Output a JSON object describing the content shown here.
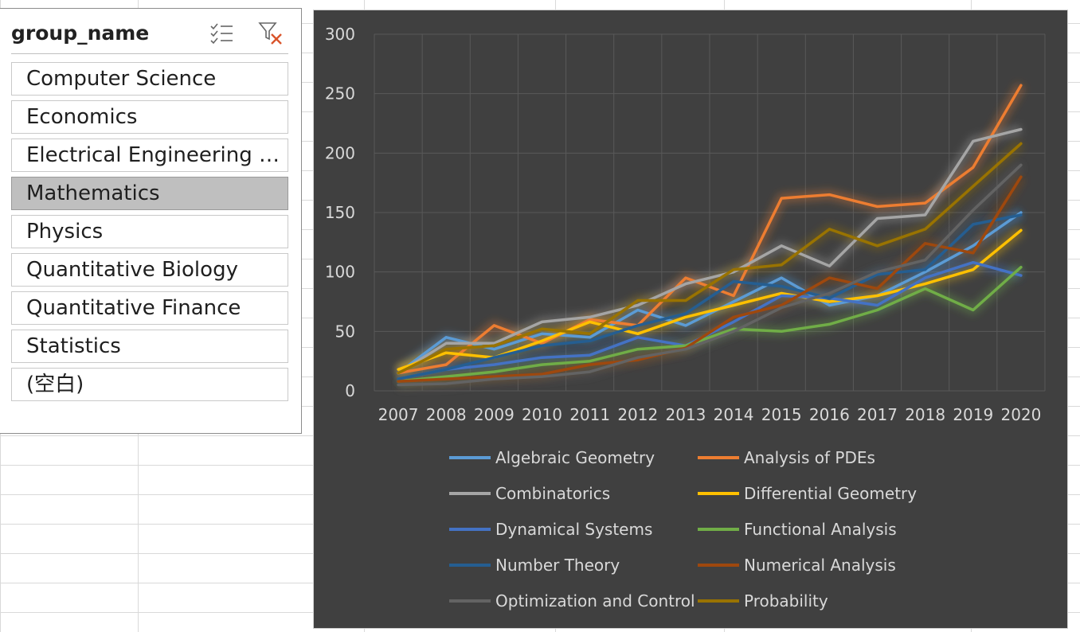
{
  "slicer": {
    "title": "group_name",
    "multiselect_icon": "multi-select-icon",
    "clear_filter_icon": "clear-filter-icon",
    "items": [
      {
        "label": "Computer Science",
        "selected": false
      },
      {
        "label": "Economics",
        "selected": false
      },
      {
        "label": "Electrical Engineering a...",
        "selected": false
      },
      {
        "label": "Mathematics",
        "selected": true
      },
      {
        "label": "Physics",
        "selected": false
      },
      {
        "label": "Quantitative Biology",
        "selected": false
      },
      {
        "label": "Quantitative Finance",
        "selected": false
      },
      {
        "label": "Statistics",
        "selected": false
      },
      {
        "label": "(空白)",
        "selected": false
      }
    ]
  },
  "chart_data": {
    "type": "line",
    "title": "",
    "xlabel": "",
    "ylabel": "",
    "x": [
      "2007",
      "2008",
      "2009",
      "2010",
      "2011",
      "2012",
      "2013",
      "2014",
      "2015",
      "2016",
      "2017",
      "2018",
      "2019",
      "2020"
    ],
    "ylim": [
      0,
      300
    ],
    "yticks": [
      0,
      50,
      100,
      150,
      200,
      250,
      300
    ],
    "grid": true,
    "legend_position": "bottom",
    "background": "#404040",
    "series": [
      {
        "name": "Algebraic Geometry",
        "color": "#5b9bd5",
        "values": [
          15,
          45,
          35,
          48,
          45,
          68,
          55,
          75,
          95,
          72,
          80,
          100,
          122,
          150
        ]
      },
      {
        "name": "Analysis of PDEs",
        "color": "#ed7d31",
        "values": [
          15,
          22,
          55,
          40,
          60,
          55,
          95,
          80,
          162,
          165,
          155,
          158,
          188,
          257
        ]
      },
      {
        "name": "Combinatorics",
        "color": "#a5a5a5",
        "values": [
          15,
          40,
          40,
          58,
          62,
          72,
          90,
          100,
          122,
          105,
          145,
          148,
          210,
          220
        ]
      },
      {
        "name": "Differential Geometry",
        "color": "#ffc000",
        "values": [
          18,
          32,
          28,
          42,
          58,
          48,
          62,
          72,
          82,
          75,
          80,
          90,
          102,
          135
        ]
      },
      {
        "name": "Dynamical Systems",
        "color": "#4472c4",
        "values": [
          10,
          18,
          22,
          28,
          30,
          45,
          38,
          58,
          80,
          78,
          72,
          95,
          108,
          97
        ]
      },
      {
        "name": "Functional Analysis",
        "color": "#70ad47",
        "values": [
          8,
          12,
          16,
          22,
          25,
          35,
          38,
          52,
          50,
          56,
          68,
          86,
          68,
          104
        ]
      },
      {
        "name": "Number Theory",
        "color": "#255e91",
        "values": [
          10,
          18,
          28,
          38,
          42,
          55,
          65,
          92,
          88,
          78,
          98,
          102,
          140,
          148
        ]
      },
      {
        "name": "Numerical Analysis",
        "color": "#9e480e",
        "values": [
          8,
          10,
          12,
          14,
          22,
          26,
          36,
          62,
          72,
          95,
          86,
          124,
          116,
          180
        ]
      },
      {
        "name": "Optimization and Control",
        "color": "#636363",
        "values": [
          5,
          6,
          10,
          12,
          16,
          28,
          35,
          50,
          70,
          82,
          100,
          110,
          152,
          190
        ]
      },
      {
        "name": "Probability",
        "color": "#997300",
        "values": [
          15,
          35,
          38,
          52,
          48,
          76,
          76,
          102,
          106,
          136,
          122,
          136,
          172,
          208
        ]
      }
    ]
  }
}
